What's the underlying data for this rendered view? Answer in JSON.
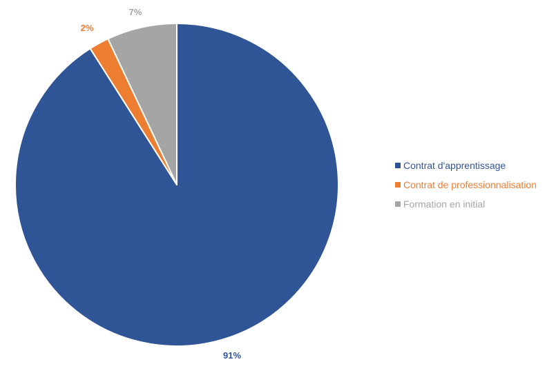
{
  "chart_data": {
    "type": "pie",
    "title": "",
    "slices": [
      {
        "name": "Contrat d'apprentissage",
        "value": 91,
        "label": "91%",
        "color": "#2F5597"
      },
      {
        "name": "Contrat de professionnalisation",
        "value": 2,
        "label": "2%",
        "color": "#ED7D31"
      },
      {
        "name": "Formation en initial",
        "value": 7,
        "label": "7%",
        "color": "#A5A5A5"
      }
    ],
    "legend": {
      "placement": "right",
      "entries": [
        {
          "label": "Contrat d'apprentissage",
          "color": "#2F5597"
        },
        {
          "label": "Contrat de professionnalisation",
          "color": "#ED7D31"
        },
        {
          "label": "Formation en initial",
          "color": "#A5A5A5"
        }
      ]
    },
    "start_angle": "12 o'clock",
    "direction": "clockwise"
  }
}
